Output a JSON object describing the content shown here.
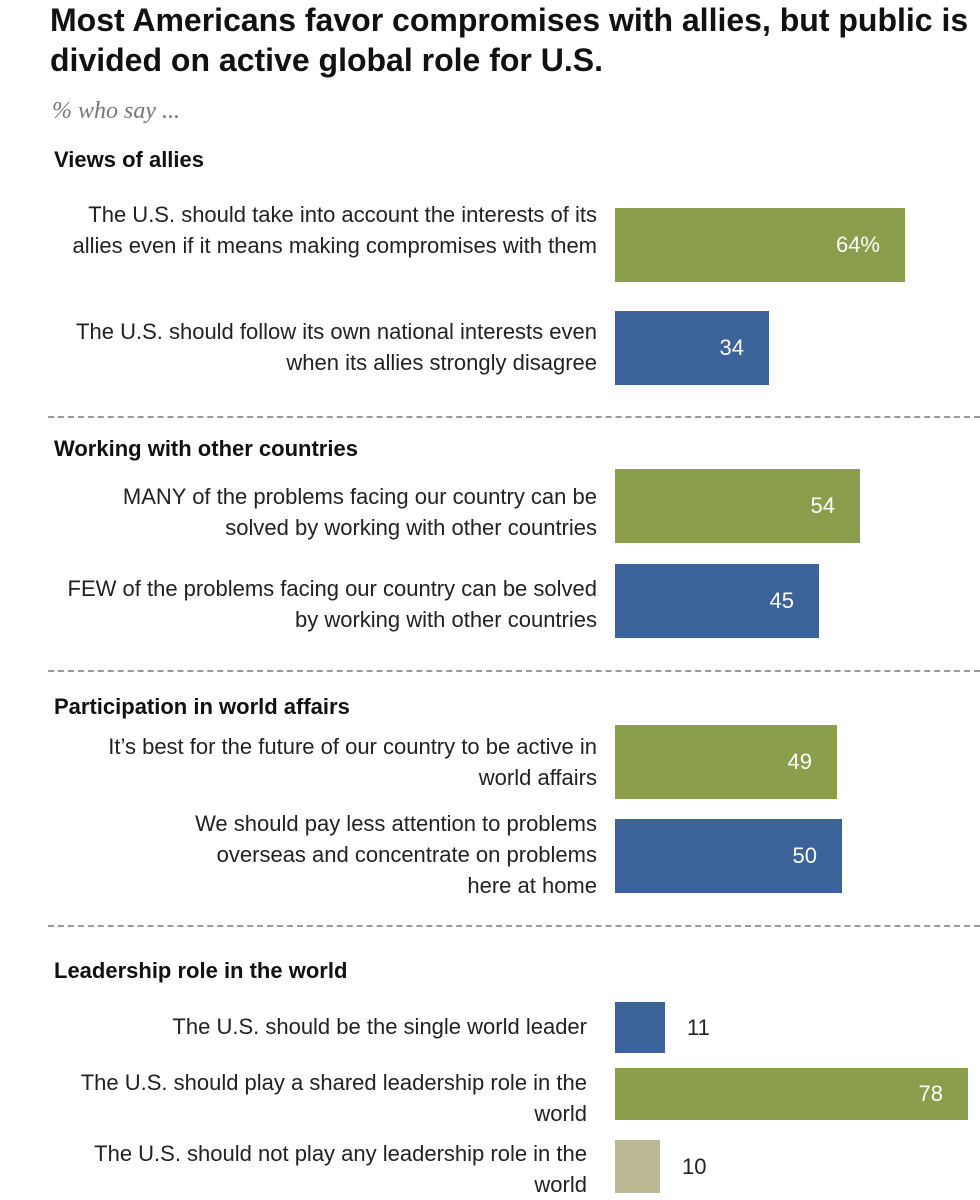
{
  "title": "Most Americans favor compromises with allies, but public is divided on active global role for U.S.",
  "subtitle": "% who say ...",
  "colors": {
    "green": "#8a9e4b",
    "blue": "#3b6299",
    "tan": "#bbb894"
  },
  "chart_data": {
    "type": "bar",
    "orientation": "horizontal",
    "title": "Most Americans favor compromises with allies, but public is divided on active global role for U.S.",
    "subtitle": "% who say ...",
    "unit": "%",
    "xlim": [
      0,
      100
    ],
    "groups": [
      {
        "heading": "Views of allies",
        "items": [
          {
            "label": "The U.S. should take into account the interests of its allies even if it means making compromises with them",
            "value": 64,
            "display": "64%",
            "color": "green"
          },
          {
            "label": "The U.S. should follow its own national interests even when its allies strongly disagree",
            "value": 34,
            "display": "34",
            "color": "blue"
          }
        ]
      },
      {
        "heading": "Working with other countries",
        "items": [
          {
            "label": "MANY of the problems facing our country can be solved by working with other countries",
            "value": 54,
            "display": "54",
            "color": "green"
          },
          {
            "label": "FEW of the problems facing our country can be solved by working with other countries",
            "value": 45,
            "display": "45",
            "color": "blue"
          }
        ]
      },
      {
        "heading": "Participation in world affairs",
        "items": [
          {
            "label": "It’s best for the future of our country to be active in world affairs",
            "value": 49,
            "display": "49",
            "color": "green"
          },
          {
            "label": "We should pay less attention to problems overseas and concentrate on problems here at home",
            "value": 50,
            "display": "50",
            "color": "blue"
          }
        ]
      },
      {
        "heading": "Leadership role in the world",
        "items": [
          {
            "label": "The U.S. should be the single world leader",
            "value": 11,
            "display": "11",
            "color": "blue"
          },
          {
            "label": "The U.S. should play a shared leadership role in the world",
            "value": 78,
            "display": "78",
            "color": "green"
          },
          {
            "label": "The U.S. should not play any leadership role in the world",
            "value": 10,
            "display": "10",
            "color": "tan"
          }
        ]
      }
    ]
  }
}
